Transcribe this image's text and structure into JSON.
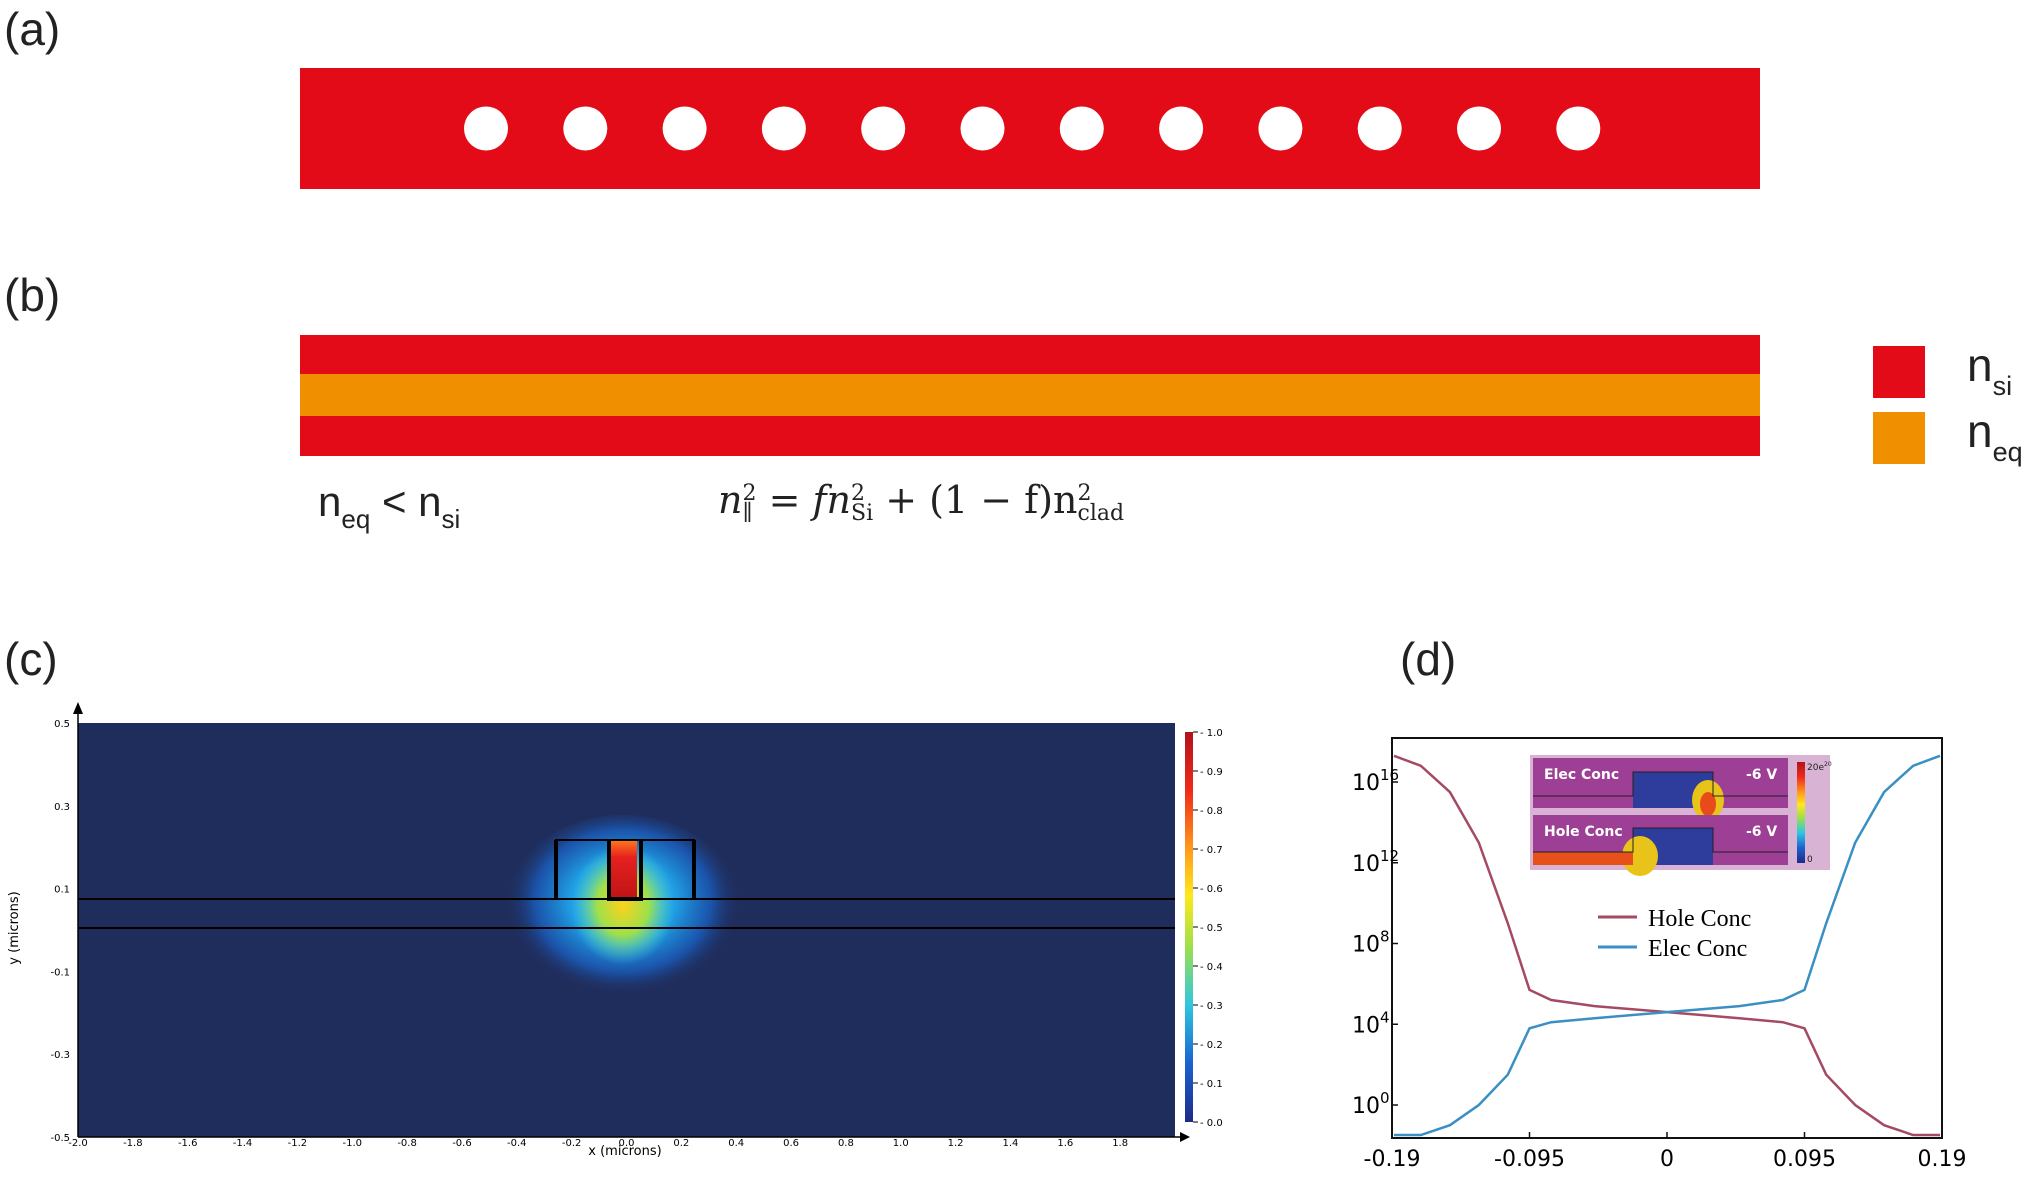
{
  "panels": {
    "a": {
      "label": "(a)",
      "holes": 12
    },
    "b": {
      "label": "(b)",
      "legend": [
        {
          "main": "n",
          "sub": "si",
          "color": "#e30b17"
        },
        {
          "main": "n",
          "sub": "eq",
          "color": "#f09000"
        }
      ],
      "inequality": {
        "n1": "n",
        "s1": "eq",
        "op": " < ",
        "n2": "n",
        "s2": "si"
      },
      "formula": {
        "lhs": "n",
        "lhs_sub": "∥",
        "lhs_sup": "2",
        "eq": " = ",
        "t1": "fn",
        "t1_sub": "Si",
        "t1_sup": "2",
        "plus": " + (1 − f)n",
        "t2_sub": "clad",
        "t2_sup": "2"
      },
      "colors": {
        "si": "#e30b17",
        "eq": "#f09000"
      }
    },
    "c": {
      "label": "(c)",
      "xlabel": "x (microns)",
      "ylabel": "y (microns)",
      "x_ticks": [
        "-2.0",
        "-1.8",
        "-1.6",
        "-1.4",
        "-1.2",
        "-1.0",
        "-0.8",
        "-0.6",
        "-0.4",
        "-0.2",
        "0.0",
        "0.2",
        "0.4",
        "0.6",
        "0.8",
        "1.0",
        "1.2",
        "1.4",
        "1.6",
        "1.8"
      ],
      "y_ticks": [
        "0.5",
        "0.3",
        "0.1",
        "-0.1",
        "-0.3",
        "-0.5"
      ],
      "colorbar_ticks": [
        "1.0",
        "0.9",
        "0.8",
        "0.7",
        "0.6",
        "0.5",
        "0.4",
        "0.3",
        "0.2",
        "0.1",
        "0.0"
      ],
      "background": "#1f2d5c"
    },
    "d": {
      "label": "(d)",
      "x_ticks": [
        "-0.19",
        "-0.095",
        "0",
        "0.095",
        "0.19"
      ],
      "y_ticks": [
        {
          "base": "10",
          "exp": "16"
        },
        {
          "base": "10",
          "exp": "12"
        },
        {
          "base": "10",
          "exp": "8"
        },
        {
          "base": "10",
          "exp": "4"
        },
        {
          "base": "10",
          "exp": "0"
        }
      ],
      "legend": [
        {
          "name": "Hole Conc",
          "color": "#a44a62"
        },
        {
          "name": "Elec Conc",
          "color": "#3a8fc4"
        }
      ],
      "inset": {
        "top_title": "Elec Conc",
        "top_voltage": "-6 V",
        "bottom_title": "Hole Conc",
        "bottom_voltage": "-6 V",
        "cbar_top": "20e",
        "cbar_top_exp": "20",
        "cbar_bottom": "0"
      }
    }
  },
  "chart_data": {
    "type": "line",
    "title": "",
    "xlabel": "",
    "ylabel": "",
    "xlim": [
      -0.19,
      0.19
    ],
    "y_scale": "log",
    "series": [
      {
        "name": "Hole Conc",
        "x": [
          -0.19,
          -0.17,
          -0.15,
          -0.13,
          -0.11,
          -0.095,
          -0.08,
          -0.05,
          0,
          0.05,
          0.08,
          0.095,
          0.11,
          0.13,
          0.15,
          0.17,
          0.19
        ],
        "y_log10": [
          17.3,
          16.8,
          15.5,
          13,
          9,
          5.7,
          5.2,
          4.9,
          4.6,
          4.3,
          4.1,
          3.8,
          1.5,
          0,
          -1,
          -1.5,
          -1.6
        ]
      },
      {
        "name": "Elec Conc",
        "x": [
          -0.19,
          -0.17,
          -0.15,
          -0.13,
          -0.11,
          -0.095,
          -0.08,
          -0.05,
          0,
          0.05,
          0.08,
          0.095,
          0.11,
          0.13,
          0.15,
          0.17,
          0.19
        ],
        "y_log10": [
          -1.6,
          -1.5,
          -1,
          0,
          1.5,
          3.8,
          4.1,
          4.3,
          4.6,
          4.9,
          5.2,
          5.7,
          9,
          13,
          15.5,
          16.8,
          17.3
        ]
      }
    ]
  }
}
